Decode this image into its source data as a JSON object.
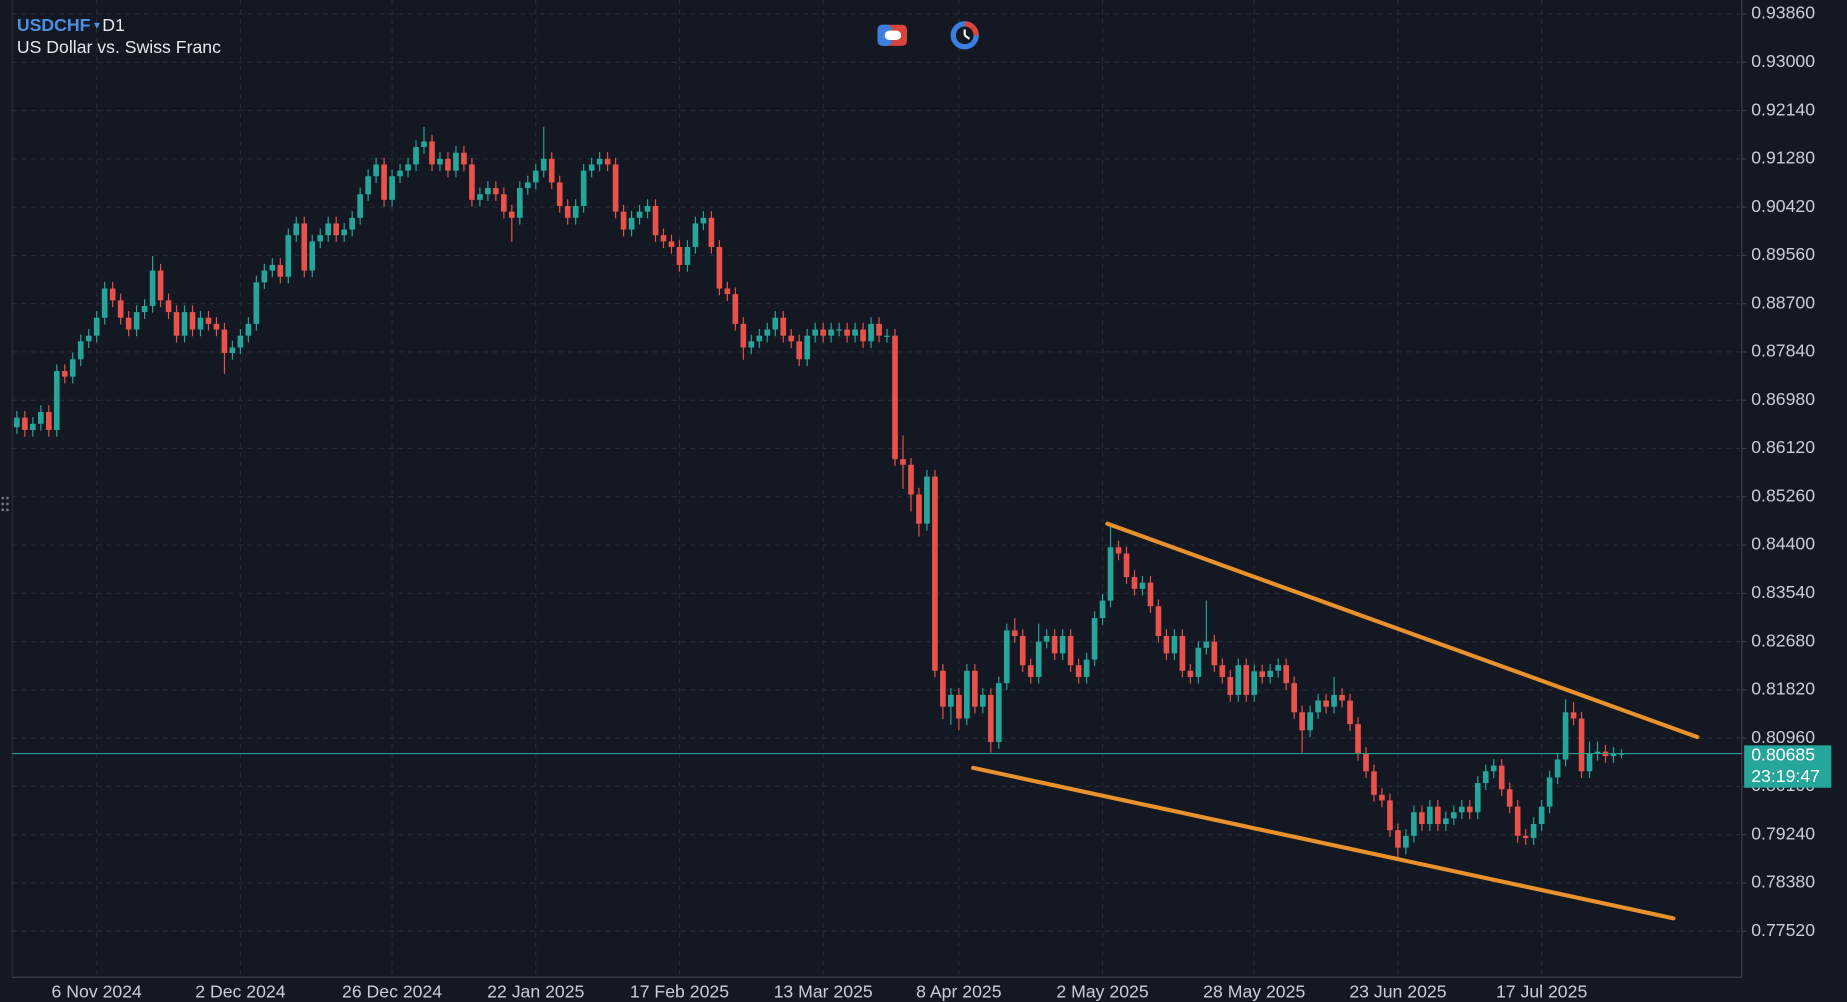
{
  "chart_data": {
    "type": "candlestick",
    "symbol": "USDCHF",
    "timeframe": "D1",
    "title": "US Dollar vs. Swiss Franc",
    "up_color": "#26a69a",
    "down_color": "#e8524a",
    "grid": true,
    "ylim": [
      0.767,
      0.9411
    ],
    "yticks": [
      {
        "value": 0.9386,
        "label": "0.93860"
      },
      {
        "value": 0.93,
        "label": "0.93000"
      },
      {
        "value": 0.9214,
        "label": "0.92140"
      },
      {
        "value": 0.9128,
        "label": "0.91280"
      },
      {
        "value": 0.9042,
        "label": "0.90420"
      },
      {
        "value": 0.8956,
        "label": "0.89560"
      },
      {
        "value": 0.887,
        "label": "0.88700"
      },
      {
        "value": 0.8784,
        "label": "0.87840"
      },
      {
        "value": 0.8698,
        "label": "0.86980"
      },
      {
        "value": 0.8612,
        "label": "0.86120"
      },
      {
        "value": 0.8526,
        "label": "0.85260"
      },
      {
        "value": 0.844,
        "label": "0.84400"
      },
      {
        "value": 0.8354,
        "label": "0.83540"
      },
      {
        "value": 0.8268,
        "label": "0.82680"
      },
      {
        "value": 0.8182,
        "label": "0.81820"
      },
      {
        "value": 0.8096,
        "label": "0.80960"
      },
      {
        "value": 0.801,
        "label": "0.80100"
      },
      {
        "value": 0.7924,
        "label": "0.79240"
      },
      {
        "value": 0.7838,
        "label": "0.78380"
      },
      {
        "value": 0.7752,
        "label": "0.77520"
      }
    ],
    "last_price": 0.80685,
    "countdown": "23:19:47",
    "categories": [
      null,
      null,
      null,
      null,
      null,
      null,
      null,
      null,
      null,
      null,
      "6 Nov 2024",
      null,
      null,
      null,
      null,
      null,
      null,
      null,
      null,
      null,
      null,
      null,
      null,
      null,
      null,
      null,
      null,
      null,
      "2 Dec 2024",
      null,
      null,
      null,
      null,
      null,
      null,
      null,
      null,
      null,
      null,
      null,
      null,
      null,
      null,
      null,
      null,
      null,
      null,
      "26 Dec 2024",
      null,
      null,
      null,
      null,
      null,
      null,
      null,
      null,
      null,
      null,
      null,
      null,
      null,
      null,
      null,
      null,
      null,
      "22 Jan 2025",
      null,
      null,
      null,
      null,
      null,
      null,
      null,
      null,
      null,
      null,
      null,
      null,
      null,
      null,
      null,
      null,
      null,
      "17 Feb 2025",
      null,
      null,
      null,
      null,
      null,
      null,
      null,
      null,
      null,
      null,
      null,
      null,
      null,
      null,
      null,
      null,
      null,
      "13 Mar 2025",
      null,
      null,
      null,
      null,
      null,
      null,
      null,
      null,
      null,
      null,
      null,
      null,
      null,
      null,
      null,
      null,
      "8 Apr 2025",
      null,
      null,
      null,
      null,
      null,
      null,
      null,
      null,
      null,
      null,
      null,
      null,
      null,
      null,
      null,
      null,
      null,
      "2 May 2025",
      null,
      null,
      null,
      null,
      null,
      null,
      null,
      null,
      null,
      null,
      null,
      null,
      null,
      null,
      null,
      null,
      null,
      null,
      "28 May 2025",
      null,
      null,
      null,
      null,
      null,
      null,
      null,
      null,
      null,
      null,
      null,
      null,
      null,
      null,
      null,
      null,
      null,
      "23 Jun 2025",
      null,
      null,
      null,
      null,
      null,
      null,
      null,
      null,
      null,
      null,
      null,
      null,
      null,
      null,
      null,
      null,
      null,
      "17 Jul 2025",
      null,
      null,
      null,
      null,
      null,
      null,
      null,
      null,
      null,
      null
    ],
    "open": [
      0.865,
      0.8667,
      0.8645,
      0.8656,
      0.8677,
      0.8645,
      0.875,
      0.874,
      0.8771,
      0.8803,
      0.8813,
      0.8845,
      0.8897,
      0.8876,
      0.8845,
      0.8824,
      0.8855,
      0.8866,
      0.8929,
      0.8876,
      0.8855,
      0.8813,
      0.8855,
      0.8824,
      0.8845,
      0.8834,
      0.8824,
      0.8782,
      0.8792,
      0.8813,
      0.8834,
      0.8908,
      0.8929,
      0.8939,
      0.8918,
      0.8992,
      0.9013,
      0.8929,
      0.8981,
      0.8992,
      0.9013,
      0.8992,
      0.9002,
      0.9023,
      0.9065,
      0.9097,
      0.9118,
      0.9055,
      0.9097,
      0.9107,
      0.9118,
      0.9149,
      0.9159,
      0.9118,
      0.9128,
      0.9107,
      0.9139,
      0.9118,
      0.9055,
      0.9065,
      0.9076,
      0.9065,
      0.9034,
      0.9023,
      0.9076,
      0.9086,
      0.9107,
      0.9128,
      0.9086,
      0.9044,
      0.9023,
      0.9044,
      0.9107,
      0.9118,
      0.9128,
      0.9118,
      0.9034,
      0.9002,
      0.9023,
      0.9034,
      0.9044,
      0.8992,
      0.8981,
      0.8971,
      0.8939,
      0.8971,
      0.9013,
      0.9023,
      0.8971,
      0.8897,
      0.8887,
      0.8834,
      0.8792,
      0.8803,
      0.8813,
      0.8824,
      0.8845,
      0.8813,
      0.8803,
      0.8771,
      0.8813,
      0.8824,
      0.8813,
      0.8824,
      0.8824,
      0.8813,
      0.8824,
      0.8803,
      0.8834,
      0.8813,
      0.8813,
      0.8593,
      0.8583,
      0.853,
      0.8478,
      0.8562,
      0.8216,
      0.8152,
      0.8173,
      0.8131,
      0.8216,
      0.8152,
      0.8173,
      0.8089,
      0.8194,
      0.8288,
      0.8278,
      0.8226,
      0.8205,
      0.8268,
      0.8278,
      0.8247,
      0.8278,
      0.8226,
      0.8205,
      0.8236,
      0.831,
      0.8341,
      0.8436,
      0.8425,
      0.8383,
      0.8362,
      0.8373,
      0.8331,
      0.8278,
      0.8247,
      0.8278,
      0.8216,
      0.8205,
      0.8257,
      0.8268,
      0.8226,
      0.8205,
      0.8173,
      0.8226,
      0.8173,
      0.8215,
      0.8205,
      0.8216,
      0.8226,
      0.8194,
      0.8142,
      0.811,
      0.8142,
      0.8163,
      0.8152,
      0.8173,
      0.8163,
      0.8121,
      0.8068,
      0.8037,
      0.7995,
      0.7985,
      0.7932,
      0.7901,
      0.7922,
      0.7964,
      0.7943,
      0.7974,
      0.7943,
      0.7953,
      0.7964,
      0.7974,
      0.7964,
      0.8016,
      0.8037,
      0.8047,
      0.8005,
      0.7974,
      0.7922,
      0.7918,
      0.7943,
      0.7974,
      0.8026,
      0.8058,
      0.8142,
      0.8131,
      0.8037,
      0.8068,
      0.8072,
      0.8064,
      0.8068
    ],
    "high": [
      0.8679,
      0.8679,
      0.8668,
      0.8689,
      0.8689,
      0.8762,
      0.8762,
      0.8783,
      0.8815,
      0.8825,
      0.8857,
      0.8909,
      0.8909,
      0.8888,
      0.8857,
      0.8867,
      0.8878,
      0.8955,
      0.8941,
      0.8888,
      0.8867,
      0.8867,
      0.8867,
      0.8857,
      0.8857,
      0.8846,
      0.8836,
      0.8804,
      0.8825,
      0.8846,
      0.892,
      0.8941,
      0.8951,
      0.8951,
      0.9004,
      0.9025,
      0.9025,
      0.8993,
      0.9004,
      0.9025,
      0.9025,
      0.9014,
      0.9035,
      0.9077,
      0.9109,
      0.913,
      0.913,
      0.9109,
      0.9119,
      0.913,
      0.9161,
      0.9185,
      0.9171,
      0.914,
      0.914,
      0.9151,
      0.9151,
      0.913,
      0.9077,
      0.9088,
      0.9088,
      0.9077,
      0.9046,
      0.9088,
      0.9098,
      0.9119,
      0.9185,
      0.914,
      0.9098,
      0.9056,
      0.9056,
      0.9119,
      0.913,
      0.914,
      0.914,
      0.913,
      0.9046,
      0.9035,
      0.9046,
      0.9056,
      0.9056,
      0.9004,
      0.8993,
      0.8983,
      0.8983,
      0.9025,
      0.9035,
      0.9035,
      0.8983,
      0.8909,
      0.8899,
      0.8846,
      0.8815,
      0.8825,
      0.8836,
      0.8857,
      0.8857,
      0.8825,
      0.8815,
      0.8825,
      0.8836,
      0.8836,
      0.8836,
      0.8836,
      0.8836,
      0.8836,
      0.8836,
      0.8846,
      0.8846,
      0.8825,
      0.8825,
      0.8635,
      0.8595,
      0.8542,
      0.8574,
      0.8574,
      0.8228,
      0.8185,
      0.8185,
      0.8228,
      0.8228,
      0.8185,
      0.8185,
      0.8206,
      0.83,
      0.831,
      0.829,
      0.8238,
      0.83,
      0.829,
      0.829,
      0.829,
      0.829,
      0.8238,
      0.8248,
      0.8322,
      0.8353,
      0.8478,
      0.8448,
      0.8437,
      0.8395,
      0.8385,
      0.8385,
      0.8343,
      0.829,
      0.829,
      0.829,
      0.8228,
      0.8269,
      0.8341,
      0.828,
      0.8238,
      0.8217,
      0.8238,
      0.8238,
      0.8227,
      0.8227,
      0.8228,
      0.8238,
      0.8238,
      0.8206,
      0.8154,
      0.8154,
      0.8175,
      0.8175,
      0.8205,
      0.8185,
      0.8175,
      0.8133,
      0.808,
      0.8049,
      0.8007,
      0.7997,
      0.7944,
      0.7934,
      0.7976,
      0.7976,
      0.7986,
      0.7986,
      0.7965,
      0.7976,
      0.7986,
      0.7986,
      0.8028,
      0.8049,
      0.8059,
      0.8059,
      0.8017,
      0.7986,
      0.7934,
      0.7955,
      0.7986,
      0.8038,
      0.807,
      0.8165,
      0.816,
      0.8143,
      0.809,
      0.809,
      0.8084,
      0.808,
      0.8076
    ],
    "low": [
      0.8638,
      0.8633,
      0.8633,
      0.8644,
      0.8633,
      0.8633,
      0.8728,
      0.8728,
      0.8759,
      0.8791,
      0.8801,
      0.8833,
      0.8864,
      0.8833,
      0.8812,
      0.8812,
      0.8843,
      0.8854,
      0.8864,
      0.8843,
      0.8801,
      0.8801,
      0.8812,
      0.8812,
      0.8822,
      0.8812,
      0.8745,
      0.877,
      0.878,
      0.8801,
      0.8822,
      0.8896,
      0.8917,
      0.8906,
      0.8906,
      0.898,
      0.8917,
      0.8917,
      0.8969,
      0.898,
      0.898,
      0.898,
      0.899,
      0.9011,
      0.9053,
      0.9085,
      0.9043,
      0.9043,
      0.9085,
      0.9095,
      0.9106,
      0.9137,
      0.9106,
      0.9106,
      0.9095,
      0.9095,
      0.9106,
      0.9043,
      0.9043,
      0.9053,
      0.9053,
      0.9022,
      0.898,
      0.9011,
      0.9064,
      0.9074,
      0.9095,
      0.9074,
      0.9032,
      0.9011,
      0.9011,
      0.9032,
      0.9095,
      0.9106,
      0.9106,
      0.9022,
      0.899,
      0.899,
      0.9011,
      0.9022,
      0.898,
      0.8969,
      0.8959,
      0.8927,
      0.8927,
      0.8959,
      0.9001,
      0.8959,
      0.8885,
      0.8875,
      0.8822,
      0.877,
      0.878,
      0.8791,
      0.8801,
      0.8812,
      0.8801,
      0.8791,
      0.8759,
      0.8759,
      0.8801,
      0.8801,
      0.8801,
      0.8812,
      0.8801,
      0.8801,
      0.8791,
      0.8791,
      0.8801,
      0.8801,
      0.8581,
      0.854,
      0.85,
      0.8455,
      0.8466,
      0.8204,
      0.813,
      0.812,
      0.811,
      0.8119,
      0.814,
      0.814,
      0.807,
      0.8077,
      0.8182,
      0.8266,
      0.8214,
      0.8193,
      0.8193,
      0.8256,
      0.8235,
      0.8235,
      0.8214,
      0.8193,
      0.8193,
      0.8224,
      0.8298,
      0.8329,
      0.8413,
      0.8371,
      0.835,
      0.835,
      0.8319,
      0.8266,
      0.8235,
      0.8235,
      0.8204,
      0.8193,
      0.8193,
      0.8245,
      0.8214,
      0.8193,
      0.8161,
      0.8161,
      0.8161,
      0.8161,
      0.8193,
      0.8193,
      0.8204,
      0.8182,
      0.813,
      0.807,
      0.8098,
      0.813,
      0.814,
      0.814,
      0.8151,
      0.8109,
      0.8056,
      0.8025,
      0.7983,
      0.7973,
      0.792,
      0.788,
      0.7889,
      0.791,
      0.7931,
      0.7931,
      0.7931,
      0.7931,
      0.7941,
      0.7952,
      0.7952,
      0.7952,
      0.8004,
      0.8025,
      0.7993,
      0.7962,
      0.791,
      0.7906,
      0.7906,
      0.7931,
      0.7962,
      0.8014,
      0.8046,
      0.8119,
      0.8025,
      0.8025,
      0.8056,
      0.8052,
      0.8052,
      0.806
    ],
    "close": [
      0.8667,
      0.8645,
      0.8656,
      0.8677,
      0.8645,
      0.875,
      0.874,
      0.8771,
      0.8803,
      0.8813,
      0.8845,
      0.8897,
      0.8876,
      0.8845,
      0.8824,
      0.8855,
      0.8866,
      0.8929,
      0.8876,
      0.8855,
      0.8813,
      0.8855,
      0.8824,
      0.8845,
      0.8834,
      0.8824,
      0.8782,
      0.8792,
      0.8813,
      0.8834,
      0.8908,
      0.8929,
      0.8939,
      0.8918,
      0.8992,
      0.9013,
      0.8929,
      0.8981,
      0.8992,
      0.9013,
      0.8992,
      0.9002,
      0.9023,
      0.9065,
      0.9097,
      0.9118,
      0.9055,
      0.9097,
      0.9107,
      0.9118,
      0.9149,
      0.9159,
      0.9118,
      0.9128,
      0.9107,
      0.9139,
      0.9118,
      0.9055,
      0.9065,
      0.9076,
      0.9065,
      0.9034,
      0.9023,
      0.9076,
      0.9086,
      0.9107,
      0.9128,
      0.9086,
      0.9044,
      0.9023,
      0.9044,
      0.9107,
      0.9118,
      0.9128,
      0.9118,
      0.9034,
      0.9002,
      0.9023,
      0.9034,
      0.9044,
      0.8992,
      0.8981,
      0.8971,
      0.8939,
      0.8971,
      0.9013,
      0.9023,
      0.8971,
      0.8897,
      0.8887,
      0.8834,
      0.8792,
      0.8803,
      0.8813,
      0.8824,
      0.8845,
      0.8813,
      0.8803,
      0.8771,
      0.8813,
      0.8824,
      0.8813,
      0.8824,
      0.8824,
      0.8813,
      0.8824,
      0.8803,
      0.8834,
      0.8813,
      0.8813,
      0.8593,
      0.8583,
      0.853,
      0.8478,
      0.8562,
      0.8216,
      0.8152,
      0.8173,
      0.8131,
      0.8216,
      0.8152,
      0.8173,
      0.8089,
      0.8194,
      0.8288,
      0.8278,
      0.8226,
      0.8205,
      0.8268,
      0.8278,
      0.8247,
      0.8278,
      0.8226,
      0.8205,
      0.8236,
      0.831,
      0.8341,
      0.8436,
      0.8425,
      0.8383,
      0.8362,
      0.8373,
      0.8331,
      0.8278,
      0.8247,
      0.8278,
      0.8216,
      0.8205,
      0.8257,
      0.8268,
      0.8226,
      0.8205,
      0.8173,
      0.8226,
      0.8173,
      0.8215,
      0.8205,
      0.8216,
      0.8226,
      0.8194,
      0.8142,
      0.811,
      0.8142,
      0.8163,
      0.8152,
      0.8173,
      0.8163,
      0.8121,
      0.8068,
      0.8037,
      0.7995,
      0.7985,
      0.7932,
      0.7901,
      0.7922,
      0.7964,
      0.7943,
      0.7974,
      0.7943,
      0.7953,
      0.7964,
      0.7974,
      0.7964,
      0.8016,
      0.8037,
      0.8047,
      0.8005,
      0.7974,
      0.7922,
      0.7918,
      0.7943,
      0.7974,
      0.8026,
      0.8058,
      0.8142,
      0.8131,
      0.8037,
      0.8068,
      0.8072,
      0.8064,
      0.8068,
      0.80685
    ],
    "trendlines": [
      {
        "color": "#e8912d",
        "x": [
          136.6,
          210.5
        ],
        "y": [
          0.8478,
          0.8098
        ]
      },
      {
        "color": "#e8912d",
        "x": [
          119.8,
          207.5
        ],
        "y": [
          0.8043,
          0.7775
        ]
      }
    ]
  }
}
